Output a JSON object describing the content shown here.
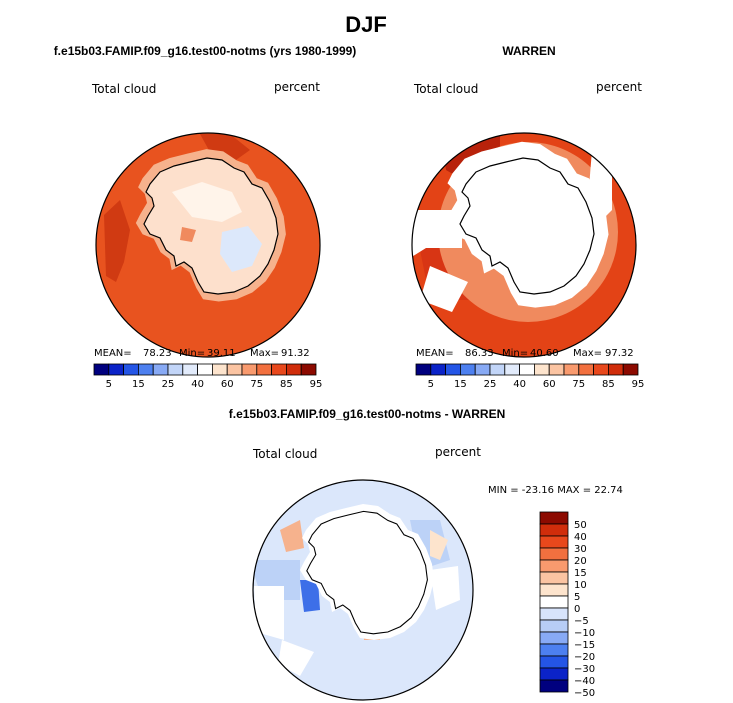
{
  "figure": {
    "title": "DJF"
  },
  "panels": [
    {
      "id": "model",
      "subtitle": "f.e15b03.FAMIP.f09_g16.test00-notms (yrs 1980-1999)",
      "left_label": "Total cloud",
      "right_label": "percent",
      "stats": {
        "mean_label": "MEAN=",
        "mean": "78.23",
        "min_label": "Min=",
        "min": "39.11",
        "max_label": "Max=",
        "max": "91.32"
      }
    },
    {
      "id": "obs",
      "subtitle": "WARREN",
      "left_label": "Total cloud",
      "right_label": "percent",
      "stats": {
        "mean_label": "MEAN=",
        "mean": "86.33",
        "min_label": "Min=",
        "min": "40.60",
        "max_label": "Max=",
        "max": "97.32"
      }
    },
    {
      "id": "diff",
      "subtitle": "f.e15b03.FAMIP.f09_g16.test00-notms - WARREN",
      "left_label": "Total cloud",
      "right_label": "percent",
      "stats_text": "MIN = -23.16 MAX =  22.74"
    }
  ],
  "colorbar_abs": {
    "labels": [
      "5",
      "15",
      "25",
      "40",
      "60",
      "75",
      "85",
      "95"
    ],
    "colors": [
      "#00007f",
      "#0b23c8",
      "#2455e6",
      "#4d80f0",
      "#88aaf5",
      "#c2d5f8",
      "#e2ebfb",
      "#ffffff",
      "#fde4cd",
      "#fbc4a2",
      "#f89a6e",
      "#f2703f",
      "#e8481c",
      "#d02d0b",
      "#8c0a00"
    ]
  },
  "colorbar_diff": {
    "labels": [
      "50",
      "40",
      "30",
      "20",
      "15",
      "10",
      "5",
      "0",
      "−5",
      "−10",
      "−15",
      "−20",
      "−30",
      "−40",
      "−50"
    ],
    "colors": [
      "#8c0a00",
      "#d02d0b",
      "#e8481c",
      "#f2703f",
      "#f89a6e",
      "#fbc4a2",
      "#fde4cd",
      "#ffffff",
      "#d8e4fb",
      "#b7cdf6",
      "#88aaf5",
      "#4d80f0",
      "#2455e6",
      "#0b23c8",
      "#00007f"
    ]
  },
  "map_colors": {
    "ocean_model": "#e8531f",
    "ocean_model_dark": "#d03a12",
    "coast_model": "#f6b28d",
    "interior_model": "#fde0cc",
    "interior_model_pale": "#fff4ea",
    "interior_model_blue": "#dce8fb",
    "ocean_obs": "#e34316",
    "ocean_obs_dark": "#b8220b",
    "ring_obs": "#f08a5e",
    "diff_bg": "#dbe7fb",
    "diff_blue": "#bcd2f7",
    "diff_deep": "#3d6fe8",
    "diff_red": "#f6b28d"
  }
}
